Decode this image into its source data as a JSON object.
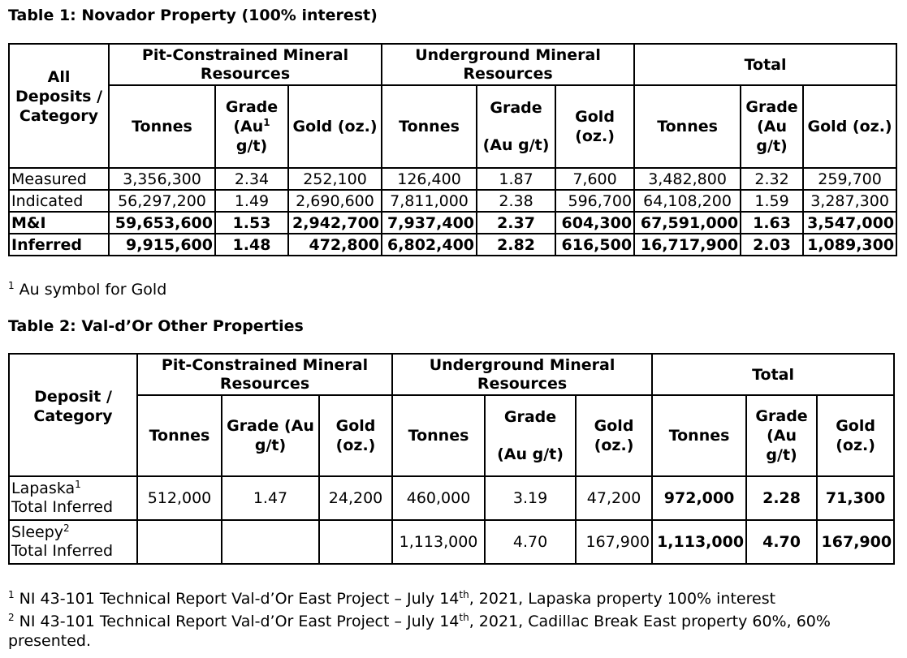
{
  "table1": {
    "title": "Table 1: Novador Property (100% interest)",
    "corner_header": "All Deposits / Category",
    "groups": [
      "Pit-Constrained Mineral Resources",
      "Underground Mineral Resources",
      "Total"
    ],
    "pit_cols": {
      "tonnes": "Tonnes",
      "grade_pre": "Grade (Au",
      "grade_sup": "1",
      "grade_post": " g/t)",
      "gold": "Gold (oz.)"
    },
    "ug_cols": {
      "tonnes": "Tonnes",
      "grade_top": "Grade",
      "grade_bottom": "(Au g/t)",
      "gold": "Gold (oz.)"
    },
    "total_cols": {
      "tonnes": "Tonnes",
      "grade": "Grade (Au g/t)",
      "gold": "Gold (oz.)"
    },
    "rows": [
      {
        "category": "Measured",
        "values": [
          "3,356,300",
          "2.34",
          "252,100",
          "126,400",
          "1.87",
          "7,600",
          "3,482,800",
          "2.32",
          "259,700"
        ]
      },
      {
        "category": "Indicated",
        "values": [
          "56,297,200",
          "1.49",
          "2,690,600",
          "7,811,000",
          "2.38",
          "596,700",
          "64,108,200",
          "1.59",
          "3,287,300"
        ]
      },
      {
        "category": "M&I",
        "values": [
          "59,653,600",
          "1.53",
          "2,942,700",
          "7,937,400",
          "2.37",
          "604,300",
          "67,591,000",
          "1.63",
          "3,547,000"
        ]
      },
      {
        "category": "Inferred",
        "values": [
          "9,915,600",
          "1.48",
          "472,800",
          "6,802,400",
          "2.82",
          "616,500",
          "16,717,900",
          "2.03",
          "1,089,300"
        ]
      }
    ],
    "footnote": {
      "sup": "1",
      "text": " Au symbol for Gold"
    }
  },
  "table2": {
    "title": "Table 2: Val-d’Or Other Properties",
    "corner_header": "Deposit / Category",
    "groups": [
      "Pit-Constrained Mineral Resources",
      "Underground Mineral Resources",
      "Total"
    ],
    "pit_cols": {
      "tonnes": "Tonnes",
      "grade": "Grade (Au g/t)",
      "gold": "Gold (oz.)"
    },
    "ug_cols": {
      "tonnes": "Tonnes",
      "grade_top": "Grade",
      "grade_bottom": "(Au g/t)",
      "gold": "Gold (oz.)"
    },
    "total_cols": {
      "tonnes": "Tonnes",
      "grade": "Grade (Au g/t)",
      "gold": "Gold (oz.)"
    },
    "rows": [
      {
        "name": "Lapaska",
        "sup": "1",
        "sub": "Total Inferred",
        "values": [
          "512,000",
          "1.47",
          "24,200",
          "460,000",
          "3.19",
          "47,200",
          "972,000",
          "2.28",
          "71,300"
        ]
      },
      {
        "name": "Sleepy",
        "sup": "2",
        "sub": "Total Inferred",
        "values": [
          "",
          "",
          "",
          "1,113,000",
          "4.70",
          "167,900",
          "1,113,000",
          "4.70",
          "167,900"
        ]
      }
    ],
    "footnotes": [
      {
        "sup": "1",
        "pre": " NI 43-101 Technical Report Val-d’Or East Project – July 14",
        "th": "th",
        "post": ", 2021, Lapaska property 100% interest"
      },
      {
        "sup": "2",
        "pre": " NI 43-101 Technical Report Val-d’Or East Project – July 14",
        "th": "th",
        "post": ", 2021, Cadillac Break East property 60%, 60% presented."
      }
    ]
  }
}
